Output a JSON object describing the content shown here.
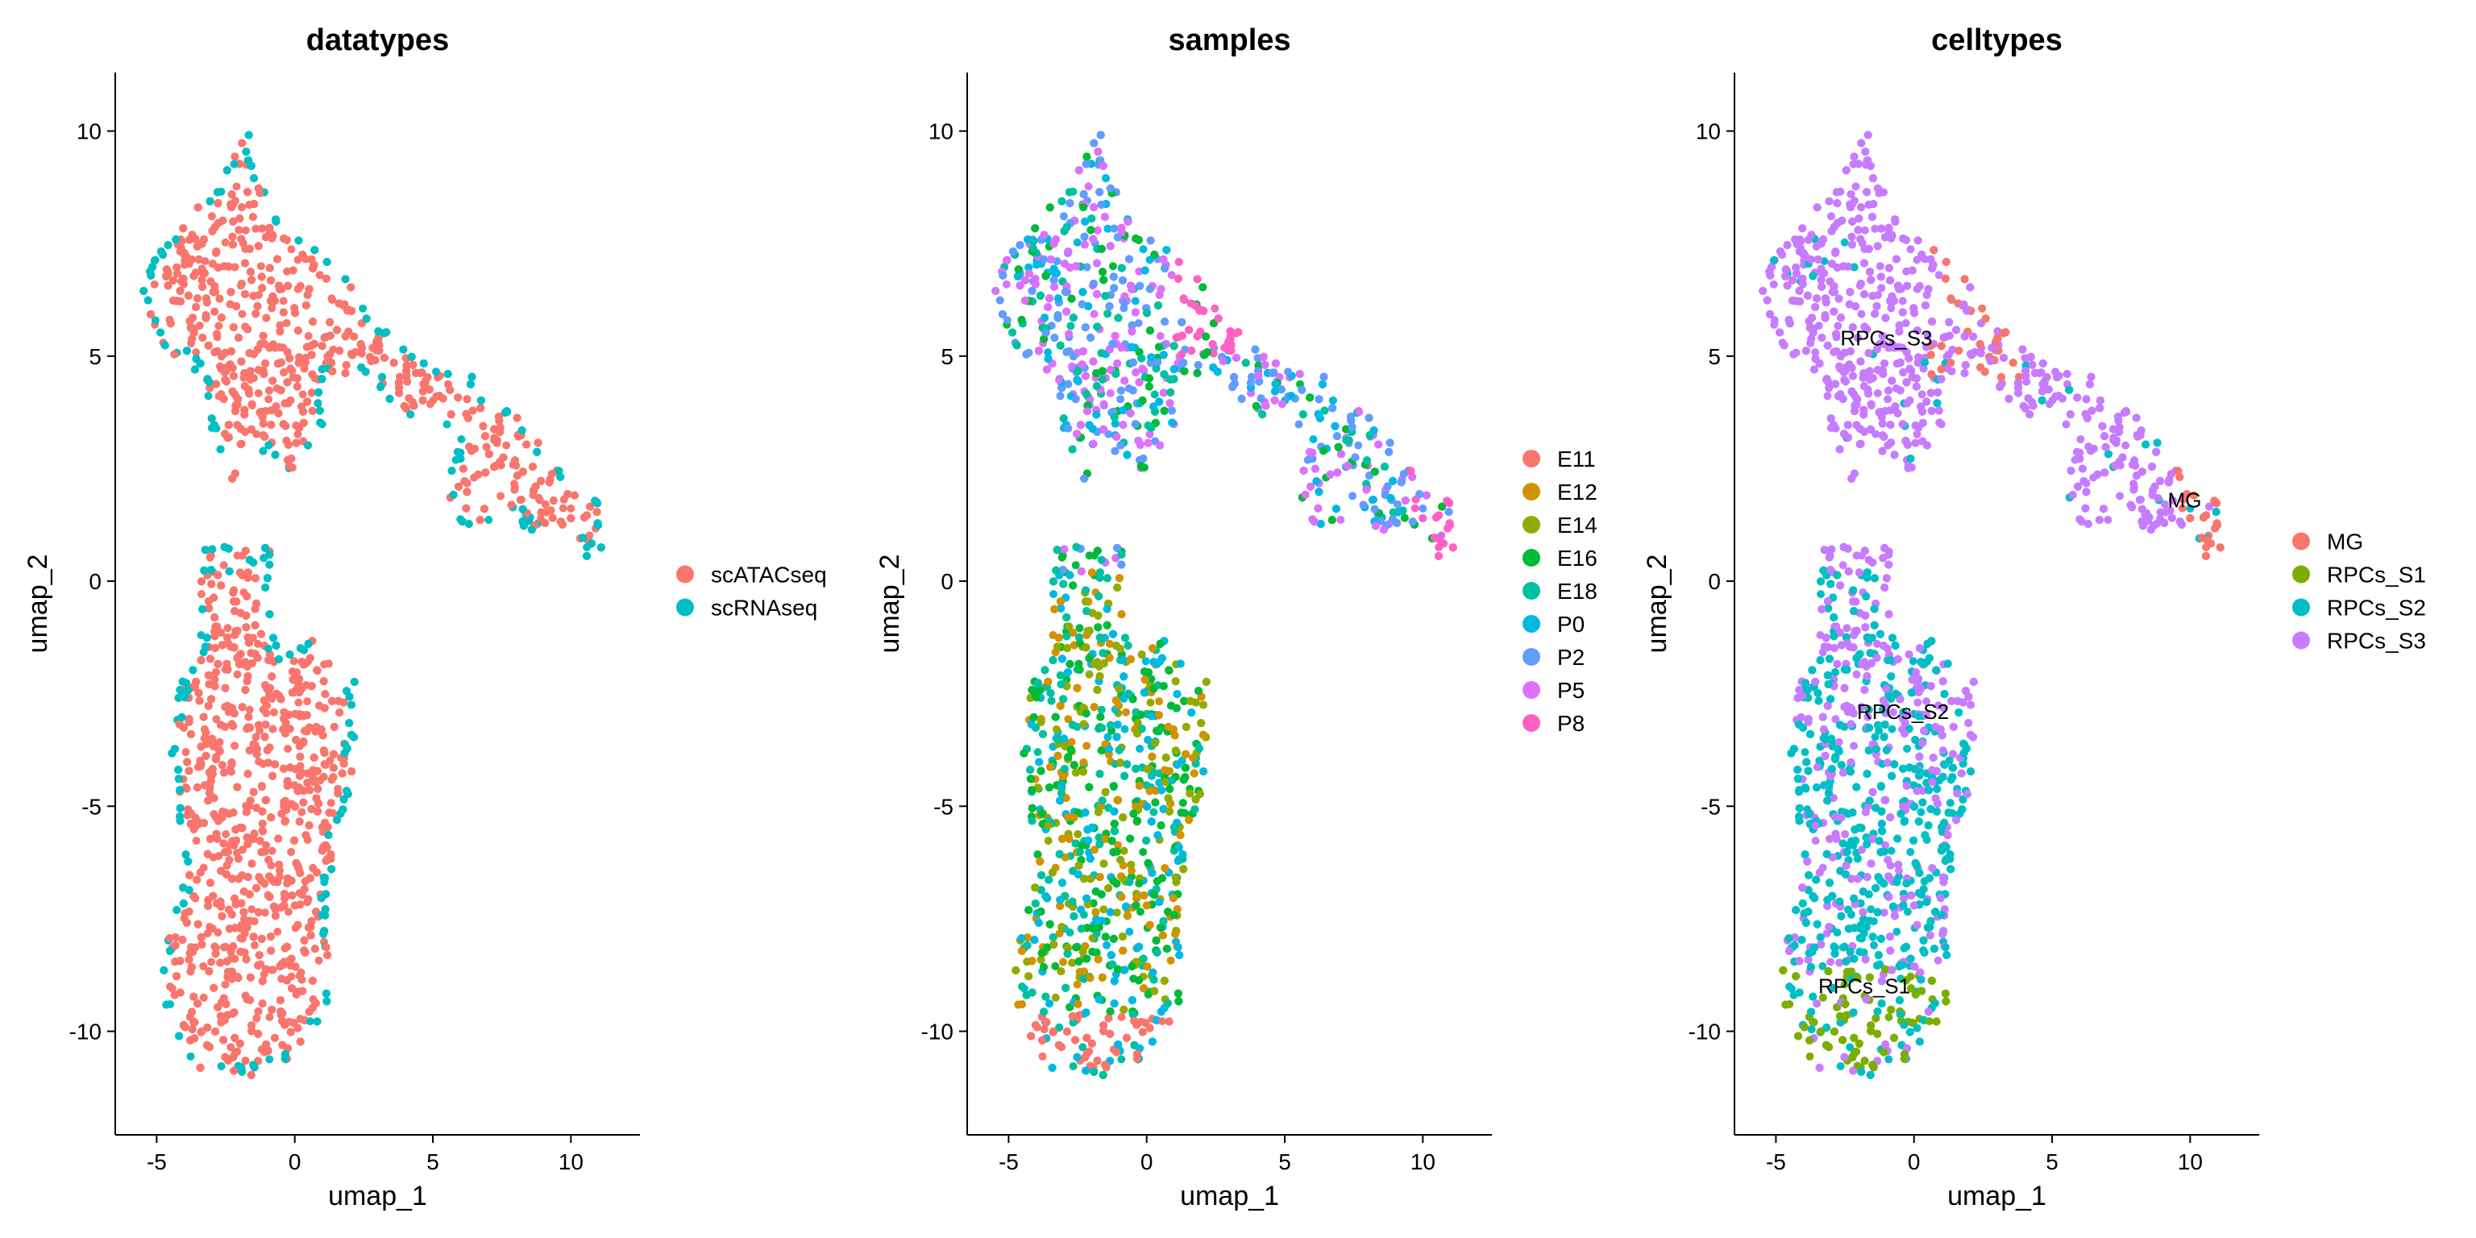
{
  "chart_data": [
    {
      "type": "scatter",
      "title": "datatypes",
      "xlabel": "umap_1",
      "ylabel": "umap_2",
      "xlim": [
        -6.5,
        12.5
      ],
      "ylim": [
        -12.3,
        11.3
      ],
      "xticks": [
        -5,
        0,
        5,
        10
      ],
      "yticks": [
        10,
        5,
        0,
        -5,
        -10
      ],
      "legend_position": "right",
      "series": [
        {
          "name": "scATACseq",
          "color": "#F8766D",
          "role": "inner"
        },
        {
          "name": "scRNAseq",
          "color": "#00BFC4",
          "role": "edge"
        }
      ],
      "cluster_labels": []
    },
    {
      "type": "scatter",
      "title": "samples",
      "xlabel": "umap_1",
      "ylabel": "umap_2",
      "xlim": [
        -6.5,
        12.5
      ],
      "ylim": [
        -12.3,
        11.3
      ],
      "xticks": [
        -5,
        0,
        5,
        10
      ],
      "yticks": [
        10,
        5,
        0,
        -5,
        -10
      ],
      "legend_position": "right",
      "series": [
        {
          "name": "E11",
          "color": "#F8766D",
          "role": "bottom-tip"
        },
        {
          "name": "E12",
          "color": "#D39200",
          "role": "lower"
        },
        {
          "name": "E14",
          "color": "#93AA00",
          "role": "lower"
        },
        {
          "name": "E16",
          "color": "#00BA38",
          "role": "lower"
        },
        {
          "name": "E18",
          "color": "#00C19F",
          "role": "mixed"
        },
        {
          "name": "P0",
          "color": "#00B9E3",
          "role": "mixed"
        },
        {
          "name": "P2",
          "color": "#619CFF",
          "role": "upper"
        },
        {
          "name": "P5",
          "color": "#DB72FB",
          "role": "upper"
        },
        {
          "name": "P8",
          "color": "#FF61C3",
          "role": "upper-right"
        }
      ],
      "cluster_labels": []
    },
    {
      "type": "scatter",
      "title": "celltypes",
      "xlabel": "umap_1",
      "ylabel": "umap_2",
      "xlim": [
        -6.5,
        12.5
      ],
      "ylim": [
        -12.3,
        11.3
      ],
      "xticks": [
        -5,
        0,
        5,
        10
      ],
      "yticks": [
        10,
        5,
        0,
        -5,
        -10
      ],
      "legend_position": "right",
      "series": [
        {
          "name": "MG",
          "color": "#F8766D",
          "role": "mg"
        },
        {
          "name": "RPCs_S1",
          "color": "#7CAE00",
          "role": "s1"
        },
        {
          "name": "RPCs_S2",
          "color": "#00BFC4",
          "role": "s2"
        },
        {
          "name": "RPCs_S3",
          "color": "#C77CFF",
          "role": "s3"
        }
      ],
      "cluster_labels": [
        {
          "text": "RPCs_S3",
          "x": -1.0,
          "y": 5.4
        },
        {
          "text": "MG",
          "x": 9.8,
          "y": 1.8
        },
        {
          "text": "RPCs_S2",
          "x": -0.4,
          "y": -2.9
        },
        {
          "text": "RPCs_S1",
          "x": -1.8,
          "y": -9.0
        }
      ]
    }
  ]
}
